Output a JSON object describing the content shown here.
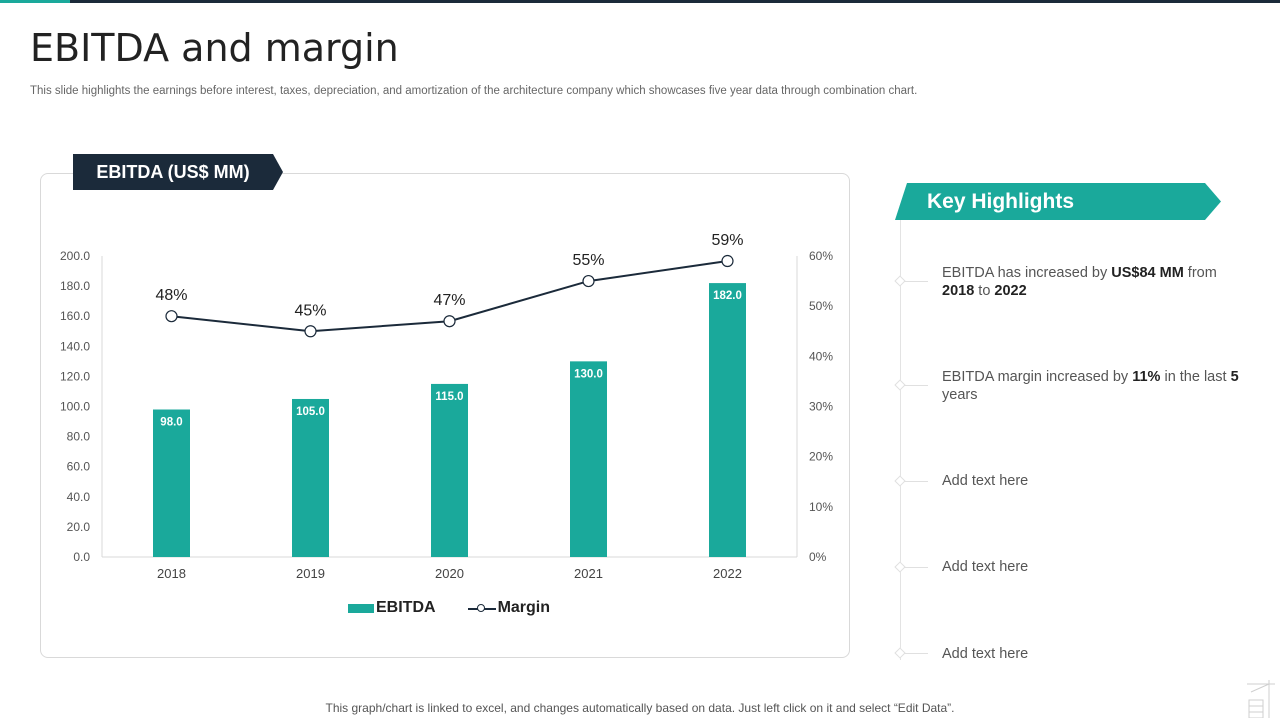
{
  "page": {
    "title": "EBITDA and margin",
    "subtitle": "This slide highlights the earnings before interest, taxes, depreciation, and amortization of the architecture company which showcases five year  data through combination chart.",
    "footer": "This graph/chart is linked to excel,  and changes automatically based on data. Just left click on it and select “Edit Data”."
  },
  "chart_tag": "EBITDA (US$ MM)",
  "chart_data": {
    "type": "bar",
    "combo": "bar+line",
    "categories": [
      "2018",
      "2019",
      "2020",
      "2021",
      "2022"
    ],
    "series": [
      {
        "name": "EBITDA",
        "type": "bar",
        "axis": "left",
        "values": [
          98.0,
          105.0,
          115.0,
          130.0,
          182.0
        ],
        "labels": [
          "98.0",
          "105.0",
          "115.0",
          "130.0",
          "182.0"
        ]
      },
      {
        "name": "Margin",
        "type": "line",
        "axis": "right",
        "values": [
          48,
          45,
          47,
          55,
          59
        ],
        "labels": [
          "48%",
          "45%",
          "47%",
          "55%",
          "59%"
        ]
      }
    ],
    "ylim": [
      0,
      200
    ],
    "y_ticks": [
      "0.0",
      "20.0",
      "40.0",
      "60.0",
      "80.0",
      "100.0",
      "120.0",
      "140.0",
      "160.0",
      "180.0",
      "200.0"
    ],
    "y2lim": [
      0,
      60
    ],
    "y2_ticks": [
      "0%",
      "10%",
      "20%",
      "30%",
      "40%",
      "50%",
      "60%"
    ],
    "grid": false,
    "legend": "bottom",
    "colors": {
      "bar": "#1aa99b",
      "line": "#1b2a3a"
    }
  },
  "highlights": {
    "title": "Key Highlights",
    "items": [
      {
        "parts": [
          {
            "t": "EBITDA has increased by ",
            "b": false
          },
          {
            "t": "US$84 MM",
            "b": true
          },
          {
            "t": " from ",
            "b": false
          },
          {
            "t": "2018",
            "b": true
          },
          {
            "t": " to ",
            "b": false
          },
          {
            "t": "2022",
            "b": true
          }
        ]
      },
      {
        "parts": [
          {
            "t": "EBITDA margin increased by ",
            "b": false
          },
          {
            "t": "11%",
            "b": true
          },
          {
            "t": " in the last ",
            "b": false
          },
          {
            "t": "5",
            "b": true
          },
          {
            "t": " years",
            "b": false
          }
        ]
      },
      {
        "parts": [
          {
            "t": "Add text here",
            "b": false
          }
        ]
      },
      {
        "parts": [
          {
            "t": "Add text here",
            "b": false
          }
        ]
      },
      {
        "parts": [
          {
            "t": "Add text here",
            "b": false
          }
        ]
      }
    ]
  },
  "colors": {
    "accent": "#1aa99b",
    "dark": "#1b2a3a"
  }
}
